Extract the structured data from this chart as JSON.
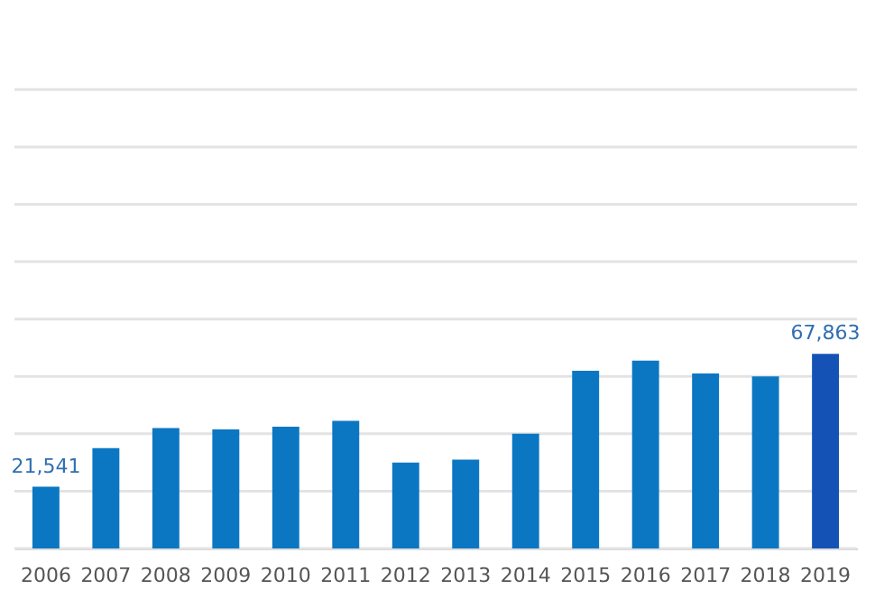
{
  "chart_data": {
    "type": "bar",
    "grid": true,
    "categories": [
      "2006",
      "2007",
      "2008",
      "2009",
      "2010",
      "2011",
      "2012",
      "2013",
      "2014",
      "2015",
      "2016",
      "2017",
      "2018",
      "2019"
    ],
    "values": [
      21541,
      35000,
      42000,
      41500,
      42500,
      44500,
      30000,
      31000,
      40000,
      62000,
      65500,
      61000,
      60000,
      67863
    ],
    "value_labels": [
      "21,541",
      null,
      null,
      null,
      null,
      null,
      null,
      null,
      null,
      null,
      null,
      null,
      null,
      "67,863"
    ],
    "colors": [
      "#0b77c3",
      "#0b77c3",
      "#0b77c3",
      "#0b77c3",
      "#0b77c3",
      "#0b77c3",
      "#0b77c3",
      "#0b77c3",
      "#0b77c3",
      "#0b77c3",
      "#0b77c3",
      "#0b77c3",
      "#0b77c3",
      "#1552b5"
    ],
    "ylim": [
      0,
      190000
    ],
    "yticks": [
      {
        "value": 0,
        "label": null
      },
      {
        "value": 20000,
        "label": null
      },
      {
        "value": 40000,
        "label": null
      },
      {
        "value": 60000,
        "label": null
      },
      {
        "value": 80000,
        "label": null
      },
      {
        "value": 100000,
        "label": null
      },
      {
        "value": 120000,
        "label": null
      },
      {
        "value": 140000,
        "label": null
      },
      {
        "value": 160000,
        "label": null
      }
    ],
    "tick_labels": "x"
  }
}
